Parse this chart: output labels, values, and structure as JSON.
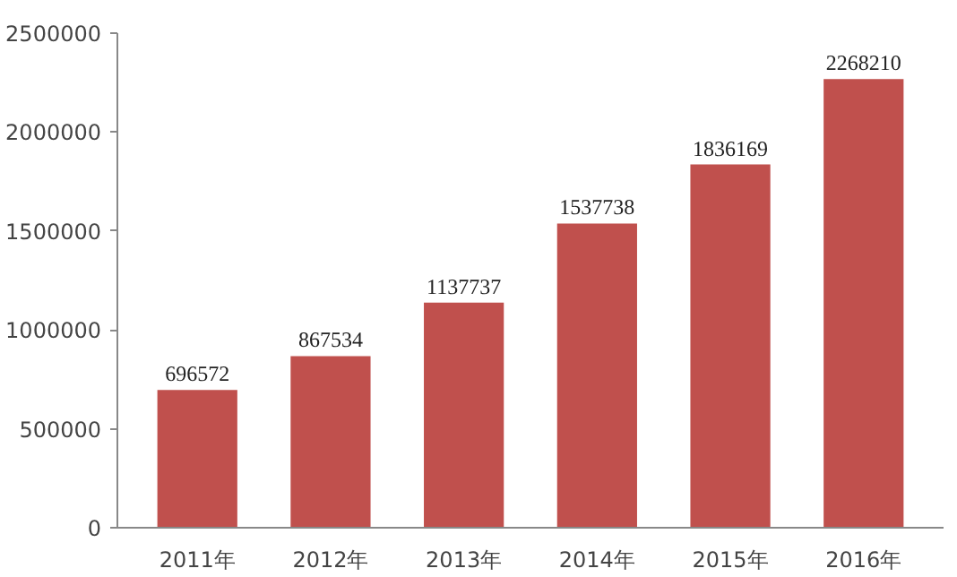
{
  "chart_data": {
    "type": "bar",
    "categories": [
      "2011年",
      "2012年",
      "2013年",
      "2014年",
      "2015年",
      "2016年"
    ],
    "values": [
      696572,
      867534,
      1137737,
      1537738,
      1836169,
      2268210
    ],
    "color": "#c0504d",
    "ylim": [
      0,
      2500000
    ],
    "yticks": [
      0,
      500000,
      1000000,
      1500000,
      2000000,
      2500000
    ],
    "grid": false,
    "data_labels": true
  }
}
